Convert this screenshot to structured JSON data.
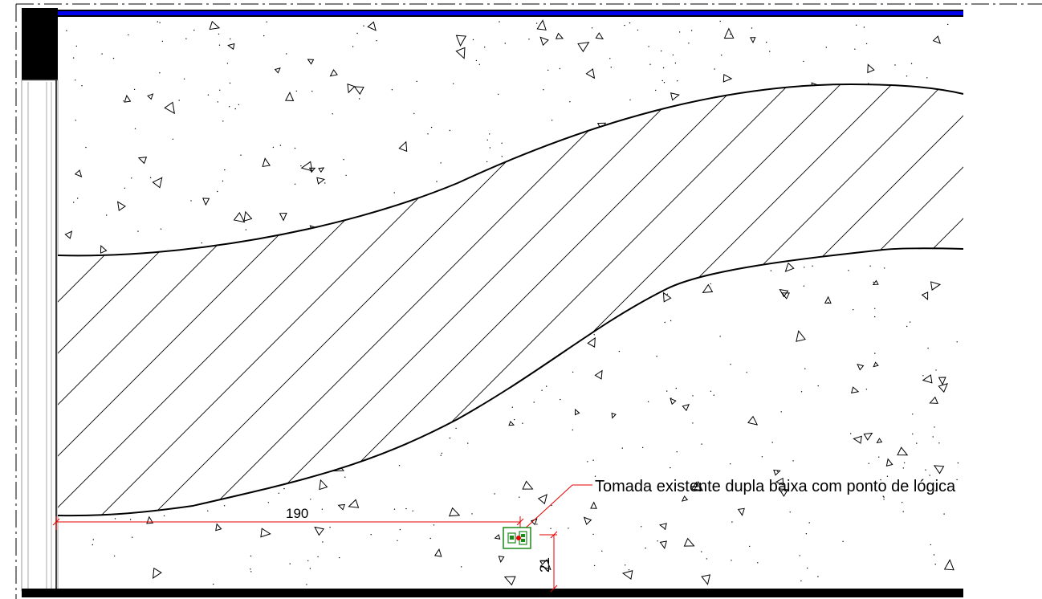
{
  "drawing": {
    "annotation": {
      "text": "Tomada existente dupla baixa com ponto de lógica"
    },
    "dimensions": {
      "horizontal_label": "190",
      "vertical_label": "21"
    },
    "colors": {
      "line": "#000000",
      "dimension": "#e60000",
      "symbol": "#1a8a1a",
      "symbol_dot": "#e60000",
      "top_wall": "#0000ee",
      "hatch": "#000000"
    },
    "elements": {
      "outlet_symbol": "double-outlet-with-data-point-icon",
      "fill_pattern": "concrete-triangle-pattern",
      "band_pattern": "diagonal-hatch-pattern"
    }
  }
}
